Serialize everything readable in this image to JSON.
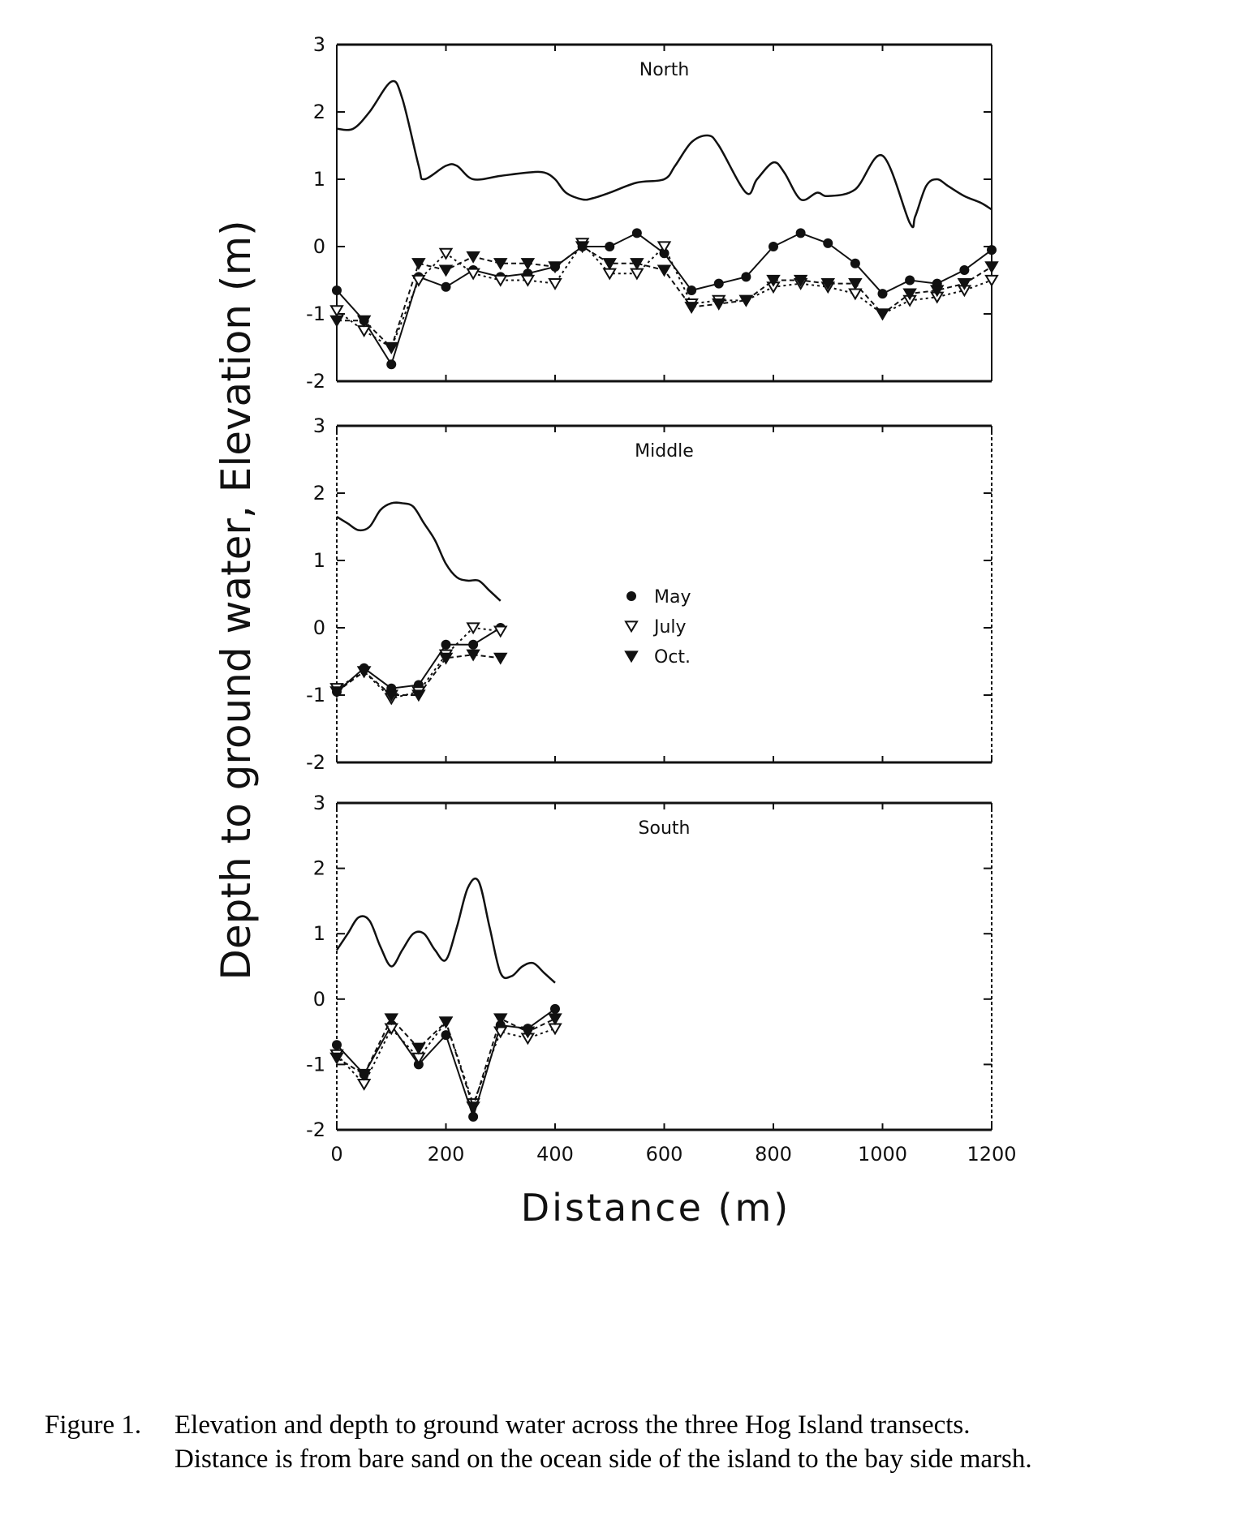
{
  "caption": {
    "lead": "Figure 1.",
    "line1": "Elevation and depth to ground water across the three Hog Island transects.",
    "line2": "Distance is from bare sand on the ocean side of the island to the bay side marsh."
  },
  "chart_data": {
    "type": "line",
    "ylabel": "Depth to ground water, Elevation (m)",
    "xlabel": "Distance (m)",
    "xlim": [
      0,
      1200
    ],
    "ylim": [
      -2,
      3
    ],
    "xticks": [
      0,
      200,
      400,
      600,
      800,
      1000,
      1200
    ],
    "yticks": [
      -2,
      -1,
      0,
      1,
      2,
      3
    ],
    "legend": {
      "placement": "inside middle panel, center",
      "entries": [
        {
          "label": "May",
          "marker": "filled-circle"
        },
        {
          "label": "July",
          "marker": "open-triangle-down"
        },
        {
          "label": "Oct.",
          "marker": "filled-triangle-down"
        }
      ]
    },
    "panels": [
      {
        "title": "North",
        "elevation": {
          "x": [
            0,
            30,
            60,
            100,
            120,
            150,
            160,
            200,
            220,
            250,
            300,
            350,
            380,
            400,
            420,
            450,
            470,
            500,
            550,
            600,
            620,
            650,
            680,
            700,
            750,
            770,
            800,
            820,
            850,
            880,
            900,
            950,
            1000,
            1050,
            1060,
            1080,
            1100,
            1120,
            1150,
            1180,
            1200
          ],
          "y": [
            1.75,
            1.75,
            2.0,
            2.45,
            2.2,
            1.2,
            1.0,
            1.2,
            1.2,
            1.0,
            1.05,
            1.1,
            1.1,
            1.0,
            0.8,
            0.7,
            0.72,
            0.8,
            0.95,
            1.0,
            1.2,
            1.55,
            1.65,
            1.5,
            0.8,
            1.0,
            1.25,
            1.1,
            0.7,
            0.8,
            0.75,
            0.85,
            1.35,
            0.35,
            0.45,
            0.9,
            1.0,
            0.9,
            0.75,
            0.65,
            0.55
          ]
        },
        "series": [
          {
            "name": "May",
            "x": [
              0,
              50,
              100,
              150,
              200,
              250,
              300,
              350,
              400,
              450,
              500,
              550,
              600,
              650,
              700,
              750,
              800,
              850,
              900,
              950,
              1000,
              1050,
              1100,
              1150,
              1200
            ],
            "values": [
              -0.65,
              -1.1,
              -1.75,
              -0.45,
              -0.6,
              -0.35,
              -0.45,
              -0.4,
              -0.3,
              0.0,
              0.0,
              0.2,
              -0.1,
              -0.65,
              -0.55,
              -0.45,
              0.0,
              0.2,
              0.05,
              -0.25,
              -0.7,
              -0.5,
              -0.55,
              -0.35,
              -0.05
            ]
          },
          {
            "name": "July",
            "x": [
              0,
              50,
              100,
              150,
              200,
              250,
              300,
              350,
              400,
              450,
              500,
              550,
              600,
              650,
              700,
              750,
              800,
              850,
              900,
              950,
              1000,
              1050,
              1100,
              1150,
              1200
            ],
            "values": [
              -0.95,
              -1.25,
              -1.5,
              -0.5,
              -0.1,
              -0.4,
              -0.5,
              -0.5,
              -0.55,
              0.05,
              -0.4,
              -0.4,
              0.0,
              -0.85,
              -0.8,
              -0.8,
              -0.6,
              -0.55,
              -0.6,
              -0.7,
              -1.0,
              -0.8,
              -0.75,
              -0.65,
              -0.5
            ]
          },
          {
            "name": "Oct.",
            "x": [
              0,
              50,
              100,
              150,
              200,
              250,
              300,
              350,
              400,
              450,
              500,
              550,
              600,
              650,
              700,
              750,
              800,
              850,
              900,
              950,
              1000,
              1050,
              1100,
              1150,
              1200
            ],
            "values": [
              -1.1,
              -1.1,
              -1.5,
              -0.25,
              -0.35,
              -0.15,
              -0.25,
              -0.25,
              -0.3,
              0.0,
              -0.25,
              -0.25,
              -0.35,
              -0.9,
              -0.85,
              -0.8,
              -0.5,
              -0.5,
              -0.55,
              -0.55,
              -1.0,
              -0.7,
              -0.65,
              -0.55,
              -0.3
            ]
          }
        ]
      },
      {
        "title": "Middle",
        "elevation": {
          "x": [
            0,
            20,
            40,
            60,
            80,
            100,
            120,
            140,
            160,
            180,
            200,
            220,
            240,
            260,
            280,
            300
          ],
          "y": [
            1.65,
            1.55,
            1.45,
            1.5,
            1.75,
            1.85,
            1.85,
            1.8,
            1.55,
            1.3,
            0.95,
            0.75,
            0.7,
            0.7,
            0.55,
            0.4
          ]
        },
        "series": [
          {
            "name": "May",
            "x": [
              0,
              50,
              100,
              150,
              200,
              250,
              300
            ],
            "values": [
              -0.95,
              -0.6,
              -0.9,
              -0.85,
              -0.25,
              -0.25,
              0.0
            ]
          },
          {
            "name": "July",
            "x": [
              0,
              50,
              100,
              150,
              200,
              250,
              300
            ],
            "values": [
              -0.9,
              -0.65,
              -1.05,
              -0.95,
              -0.4,
              0.0,
              -0.05
            ]
          },
          {
            "name": "Oct.",
            "x": [
              0,
              50,
              100,
              150,
              200,
              250,
              300
            ],
            "values": [
              -0.95,
              -0.65,
              -1.0,
              -1.0,
              -0.45,
              -0.4,
              -0.45
            ]
          }
        ]
      },
      {
        "title": "South",
        "elevation": {
          "x": [
            0,
            20,
            40,
            60,
            80,
            100,
            120,
            140,
            160,
            180,
            200,
            220,
            240,
            260,
            280,
            300,
            320,
            340,
            360,
            380,
            400
          ],
          "y": [
            0.75,
            1.0,
            1.25,
            1.2,
            0.8,
            0.5,
            0.75,
            1.0,
            1.0,
            0.75,
            0.6,
            1.1,
            1.7,
            1.8,
            1.1,
            0.4,
            0.35,
            0.5,
            0.55,
            0.4,
            0.25
          ]
        },
        "series": [
          {
            "name": "May",
            "x": [
              0,
              50,
              100,
              150,
              200,
              250,
              300,
              350,
              400
            ],
            "values": [
              -0.7,
              -1.15,
              -0.4,
              -1.0,
              -0.55,
              -1.8,
              -0.4,
              -0.45,
              -0.15
            ]
          },
          {
            "name": "July",
            "x": [
              0,
              50,
              100,
              150,
              200,
              250,
              300,
              350,
              400
            ],
            "values": [
              -0.85,
              -1.3,
              -0.45,
              -0.9,
              -0.35,
              -1.6,
              -0.5,
              -0.6,
              -0.45
            ]
          },
          {
            "name": "Oct.",
            "x": [
              0,
              50,
              100,
              150,
              200,
              250,
              300,
              350,
              400
            ],
            "values": [
              -0.9,
              -1.15,
              -0.3,
              -0.75,
              -0.35,
              -1.65,
              -0.3,
              -0.5,
              -0.3
            ]
          }
        ]
      }
    ]
  }
}
